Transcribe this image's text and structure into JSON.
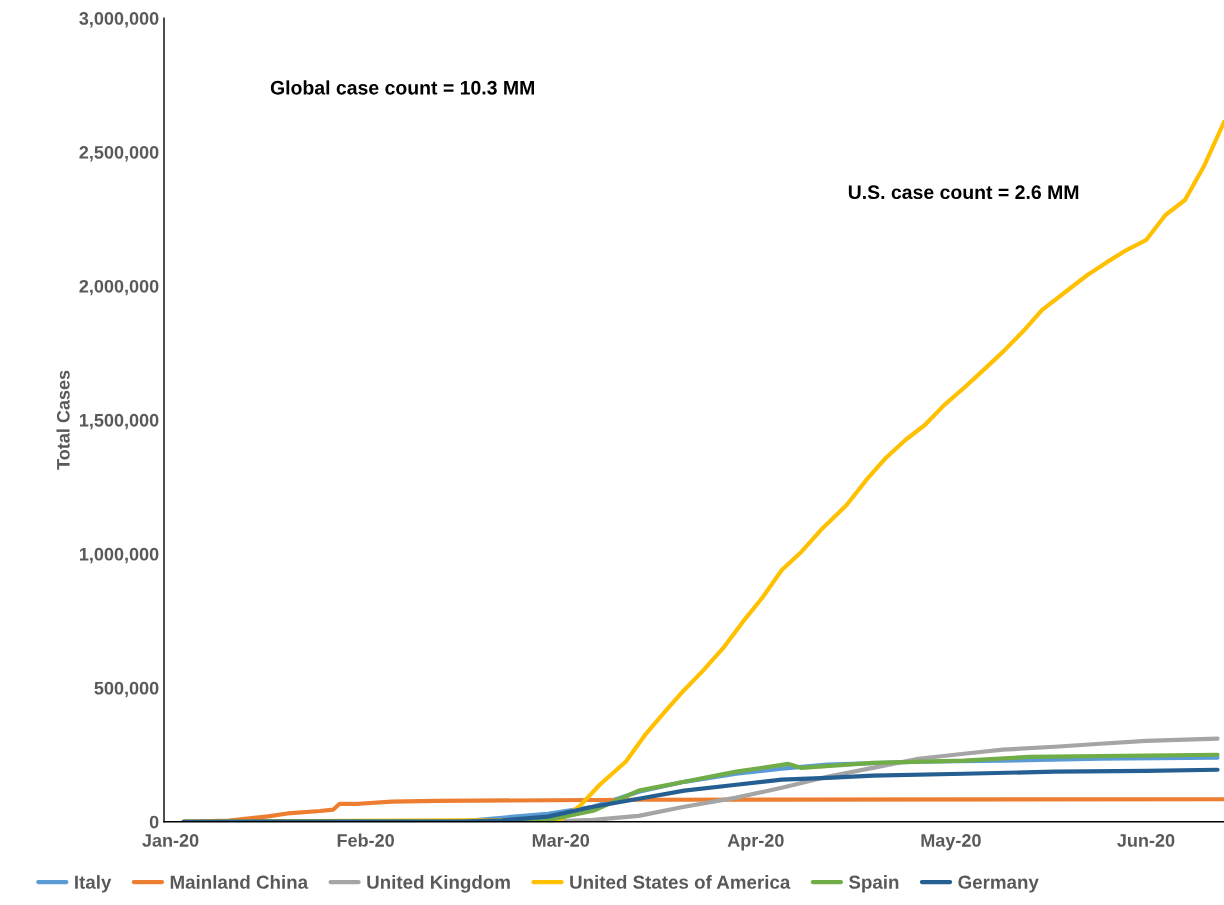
{
  "chart_data": {
    "type": "line",
    "ylabel": "Total Cases",
    "annotations": [
      "Global case count = 10.3 MM",
      "U.S. case count = 2.6 MM"
    ],
    "xlim": [
      "2020-01-19",
      "2020-06-30"
    ],
    "xticks": [
      {
        "value": "2020-01-20",
        "label": "Jan-20"
      },
      {
        "value": "2020-02-19",
        "label": "Feb-20"
      },
      {
        "value": "2020-03-20",
        "label": "Mar-20"
      },
      {
        "value": "2020-04-19",
        "label": "Apr-20"
      },
      {
        "value": "2020-05-19",
        "label": "May-20"
      },
      {
        "value": "2020-06-18",
        "label": "Jun-20"
      }
    ],
    "ylim": [
      0,
      3000000
    ],
    "yticks": [
      {
        "value": 0,
        "label": "0"
      },
      {
        "value": 500000,
        "label": "500,000"
      },
      {
        "value": 1000000,
        "label": "1,000,000"
      },
      {
        "value": 1500000,
        "label": "1,500,000"
      },
      {
        "value": 2000000,
        "label": "2,000,000"
      },
      {
        "value": 2500000,
        "label": "2,500,000"
      },
      {
        "value": 3000000,
        "label": "3,000,000"
      }
    ],
    "grid": false,
    "legend": "bottom",
    "marker": "none",
    "line_style": "solid",
    "series": [
      {
        "name": "Italy",
        "color": "#5b9bd5",
        "x": [
          "2020-01-22",
          "2020-03-01",
          "2020-03-06",
          "2020-03-11",
          "2020-03-18",
          "2020-03-25",
          "2020-04-01",
          "2020-04-08",
          "2020-04-16",
          "2020-04-23",
          "2020-04-30",
          "2020-05-14",
          "2020-05-27",
          "2020-06-11",
          "2020-06-29"
        ],
        "values": [
          0,
          1000,
          4000,
          15000,
          30000,
          56000,
          112000,
          149000,
          179000,
          198000,
          213000,
          224000,
          228000,
          235000,
          239000
        ]
      },
      {
        "name": "Mainland China",
        "color": "#ed7d31",
        "x": [
          "2020-01-22",
          "2020-01-29",
          "2020-02-04",
          "2020-02-07",
          "2020-02-12",
          "2020-02-14",
          "2020-02-15",
          "2020-02-18",
          "2020-02-23",
          "2020-03-01",
          "2020-04-01",
          "2020-06-30"
        ],
        "values": [
          0,
          4000,
          20000,
          31000,
          40000,
          45000,
          67000,
          67000,
          75000,
          78000,
          82000,
          84000
        ]
      },
      {
        "name": "United Kingdom",
        "color": "#a5a5a5",
        "x": [
          "2020-01-22",
          "2020-03-18",
          "2020-03-25",
          "2020-04-01",
          "2020-04-08",
          "2020-04-16",
          "2020-04-23",
          "2020-04-30",
          "2020-05-07",
          "2020-05-14",
          "2020-05-21",
          "2020-05-27",
          "2020-06-04",
          "2020-06-11",
          "2020-06-18",
          "2020-06-29"
        ],
        "values": [
          0,
          1000,
          7000,
          22000,
          56000,
          90000,
          127000,
          168000,
          201000,
          235000,
          254000,
          269000,
          280000,
          291000,
          302000,
          310000
        ]
      },
      {
        "name": "United States of America",
        "color": "#ffc000",
        "x": [
          "2020-01-22",
          "2020-03-20",
          "2020-03-23",
          "2020-03-26",
          "2020-03-30",
          "2020-04-02",
          "2020-04-05",
          "2020-04-08",
          "2020-04-11",
          "2020-04-14",
          "2020-04-17",
          "2020-04-20",
          "2020-04-23",
          "2020-04-26",
          "2020-04-29",
          "2020-05-03",
          "2020-05-06",
          "2020-05-09",
          "2020-05-12",
          "2020-05-15",
          "2020-05-18",
          "2020-05-21",
          "2020-05-24",
          "2020-05-27",
          "2020-05-30",
          "2020-06-02",
          "2020-06-06",
          "2020-06-09",
          "2020-06-12",
          "2020-06-15",
          "2020-06-18",
          "2020-06-21",
          "2020-06-24",
          "2020-06-27",
          "2020-06-30"
        ],
        "values": [
          0,
          7000,
          60000,
          138000,
          224000,
          325000,
          410000,
          492000,
          567000,
          649000,
          746000,
          836000,
          940000,
          1007000,
          1089000,
          1183000,
          1276000,
          1358000,
          1425000,
          1481000,
          1556000,
          1619000,
          1686000,
          1754000,
          1828000,
          1910000,
          1985000,
          2041000,
          2089000,
          2134000,
          2171000,
          2265000,
          2321000,
          2451000,
          2612000
        ]
      },
      {
        "name": "Spain",
        "color": "#70ad47",
        "x": [
          "2020-01-22",
          "2020-03-08",
          "2020-03-18",
          "2020-03-25",
          "2020-04-01",
          "2020-04-08",
          "2020-04-16",
          "2020-04-24",
          "2020-04-26",
          "2020-05-07",
          "2020-05-21",
          "2020-05-31",
          "2020-06-29"
        ],
        "values": [
          0,
          1000,
          6000,
          41000,
          116000,
          149000,
          187000,
          216000,
          201000,
          220000,
          228000,
          242000,
          250000
        ]
      },
      {
        "name": "Germany",
        "color": "#255e91",
        "x": [
          "2020-01-22",
          "2020-03-05",
          "2020-03-11",
          "2020-03-18",
          "2020-03-25",
          "2020-04-01",
          "2020-04-08",
          "2020-04-16",
          "2020-04-23",
          "2020-04-30",
          "2020-05-07",
          "2020-05-21",
          "2020-06-04",
          "2020-06-18",
          "2020-06-29"
        ],
        "values": [
          0,
          1000,
          5000,
          19000,
          56000,
          86000,
          116000,
          138000,
          157000,
          164000,
          172000,
          179000,
          187000,
          190000,
          194000
        ]
      }
    ]
  }
}
